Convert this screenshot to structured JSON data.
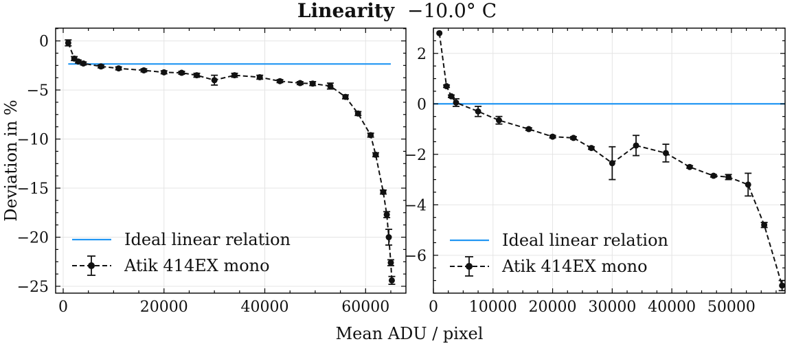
{
  "figure": {
    "title_bold": "Linearity",
    "title_rest": "−10.0° C",
    "xlabel": "Mean ADU / pixel",
    "ylabel": "Deviation in %"
  },
  "chart_data": [
    {
      "type": "line",
      "xlabel": "Mean ADU / pixel",
      "ylabel": "Deviation in %",
      "xlim": [
        -1500,
        68000
      ],
      "ylim": [
        -25.7,
        1.3
      ],
      "xticks": [
        0,
        20000,
        40000,
        60000
      ],
      "xtick_labels": [
        "0",
        "20000",
        "40000",
        "60000"
      ],
      "yticks": [
        0,
        -5,
        -10,
        -15,
        -20,
        -25
      ],
      "ytick_labels": [
        "0",
        "−5",
        "−10",
        "−15",
        "−20",
        "−25"
      ],
      "grid": true,
      "legend_position": "bottom-left",
      "series": [
        {
          "name": "Ideal linear relation",
          "color": "#2196f3",
          "style": "solid",
          "x": [
            1000,
            65000
          ],
          "y": [
            -2.35,
            -2.35
          ]
        },
        {
          "name": "Atik 414EX mono",
          "color": "#111111",
          "style": "dashed-with-circle-markers-and-errorbars",
          "x": [
            1000,
            2200,
            3000,
            4000,
            7500,
            11000,
            16000,
            20000,
            23500,
            26500,
            30000,
            34000,
            39000,
            43000,
            47000,
            49500,
            53000,
            56000,
            58500,
            61000,
            62000,
            63500,
            64200,
            64600,
            65000,
            65200
          ],
          "y": [
            -0.2,
            -1.8,
            -2.1,
            -2.3,
            -2.6,
            -2.8,
            -3.0,
            -3.2,
            -3.25,
            -3.5,
            -4.0,
            -3.5,
            -3.7,
            -4.1,
            -4.3,
            -4.35,
            -4.6,
            -5.7,
            -7.4,
            -9.6,
            -11.6,
            -15.4,
            -17.7,
            -20.0,
            -22.6,
            -24.4
          ],
          "yerr": [
            0.3,
            0.2,
            0.15,
            0.15,
            0.15,
            0.15,
            0.15,
            0.15,
            0.15,
            0.2,
            0.5,
            0.2,
            0.2,
            0.15,
            0.15,
            0.2,
            0.3,
            0.2,
            0.2,
            0.2,
            0.2,
            0.2,
            0.3,
            0.8,
            0.3,
            0.4
          ]
        }
      ]
    },
    {
      "type": "line",
      "xlabel": "",
      "ylabel": "",
      "xlim": [
        0,
        59000
      ],
      "ylim": [
        -7.5,
        3.0
      ],
      "xticks": [
        0,
        10000,
        20000,
        30000,
        40000,
        50000
      ],
      "xtick_labels": [
        "0",
        "10000",
        "20000",
        "30000",
        "40000",
        "50000"
      ],
      "yticks": [
        2,
        0,
        -2,
        -4,
        -6
      ],
      "ytick_labels": [
        "2",
        "0",
        "−2",
        "−4",
        "−6"
      ],
      "grid": true,
      "legend_position": "bottom-left",
      "series": [
        {
          "name": "Ideal linear relation",
          "color": "#2196f3",
          "style": "solid",
          "x": [
            0,
            59000
          ],
          "y": [
            0,
            0
          ]
        },
        {
          "name": "Atik 414EX mono",
          "color": "#111111",
          "style": "dashed-with-circle-markers-and-errorbars",
          "x": [
            1000,
            2200,
            3000,
            3800,
            7500,
            11000,
            16000,
            20000,
            23500,
            26500,
            30000,
            34000,
            39000,
            43000,
            47000,
            49500,
            52800,
            55500,
            58500
          ],
          "y": [
            2.8,
            0.7,
            0.3,
            0.05,
            -0.3,
            -0.65,
            -1.0,
            -1.3,
            -1.35,
            -1.75,
            -2.35,
            -1.65,
            -1.95,
            -2.5,
            -2.85,
            -2.9,
            -3.2,
            -4.8,
            -7.2
          ],
          "yerr": [
            0.0,
            0.05,
            0.05,
            0.15,
            0.2,
            0.15,
            0.05,
            0.05,
            0.05,
            0.05,
            0.65,
            0.4,
            0.35,
            0.05,
            0.05,
            0.1,
            0.45,
            0.1,
            0.2
          ]
        }
      ]
    }
  ]
}
